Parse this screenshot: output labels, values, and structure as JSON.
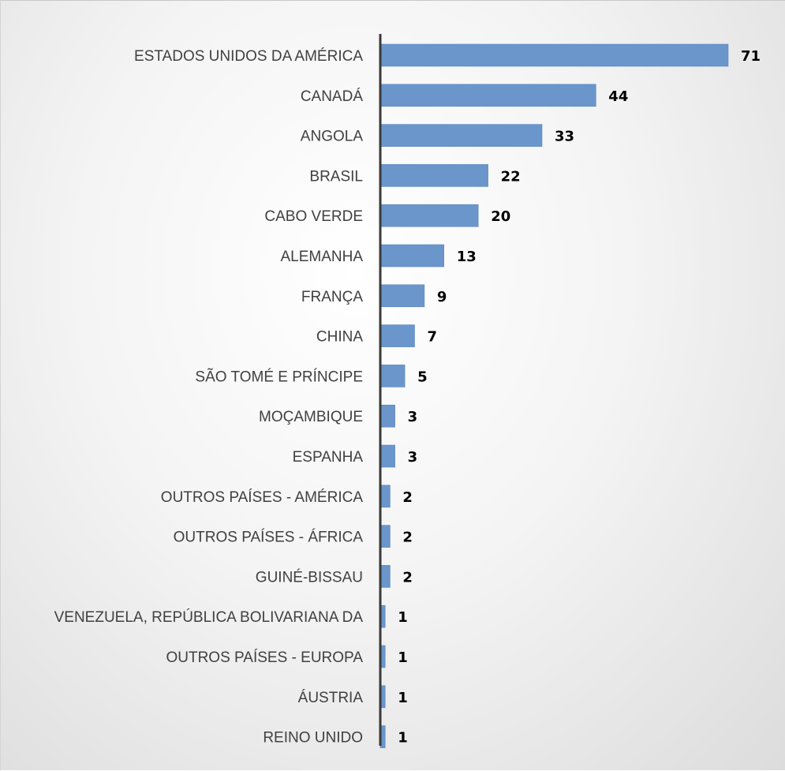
{
  "chart_data": {
    "type": "bar",
    "orientation": "horizontal",
    "categories": [
      "ESTADOS UNIDOS DA AMÉRICA",
      "CANADÁ",
      "ANGOLA",
      "BRASIL",
      "CABO VERDE",
      "ALEMANHA",
      "FRANÇA",
      "CHINA",
      "SÃO TOMÉ E PRÍNCIPE",
      "MOÇAMBIQUE",
      "ESPANHA",
      "OUTROS PAÍSES - AMÉRICA",
      "OUTROS PAÍSES - ÁFRICA",
      "GUINÉ-BISSAU",
      "VENEZUELA, REPÚBLICA BOLIVARIANA DA",
      "OUTROS PAÍSES - EUROPA",
      "ÁUSTRIA",
      "REINO UNIDO"
    ],
    "values": [
      71,
      44,
      33,
      22,
      20,
      13,
      9,
      7,
      5,
      3,
      3,
      2,
      2,
      2,
      1,
      1,
      1,
      1
    ],
    "title": "",
    "xlabel": "",
    "ylabel": "",
    "xlim": [
      0,
      71
    ],
    "grid": false,
    "legend": "none",
    "data_labels": true,
    "colors": {
      "bar": "#6a96cc",
      "axis": "#3a3a3a",
      "category_text": "#404040",
      "value_text": "#000000"
    }
  }
}
